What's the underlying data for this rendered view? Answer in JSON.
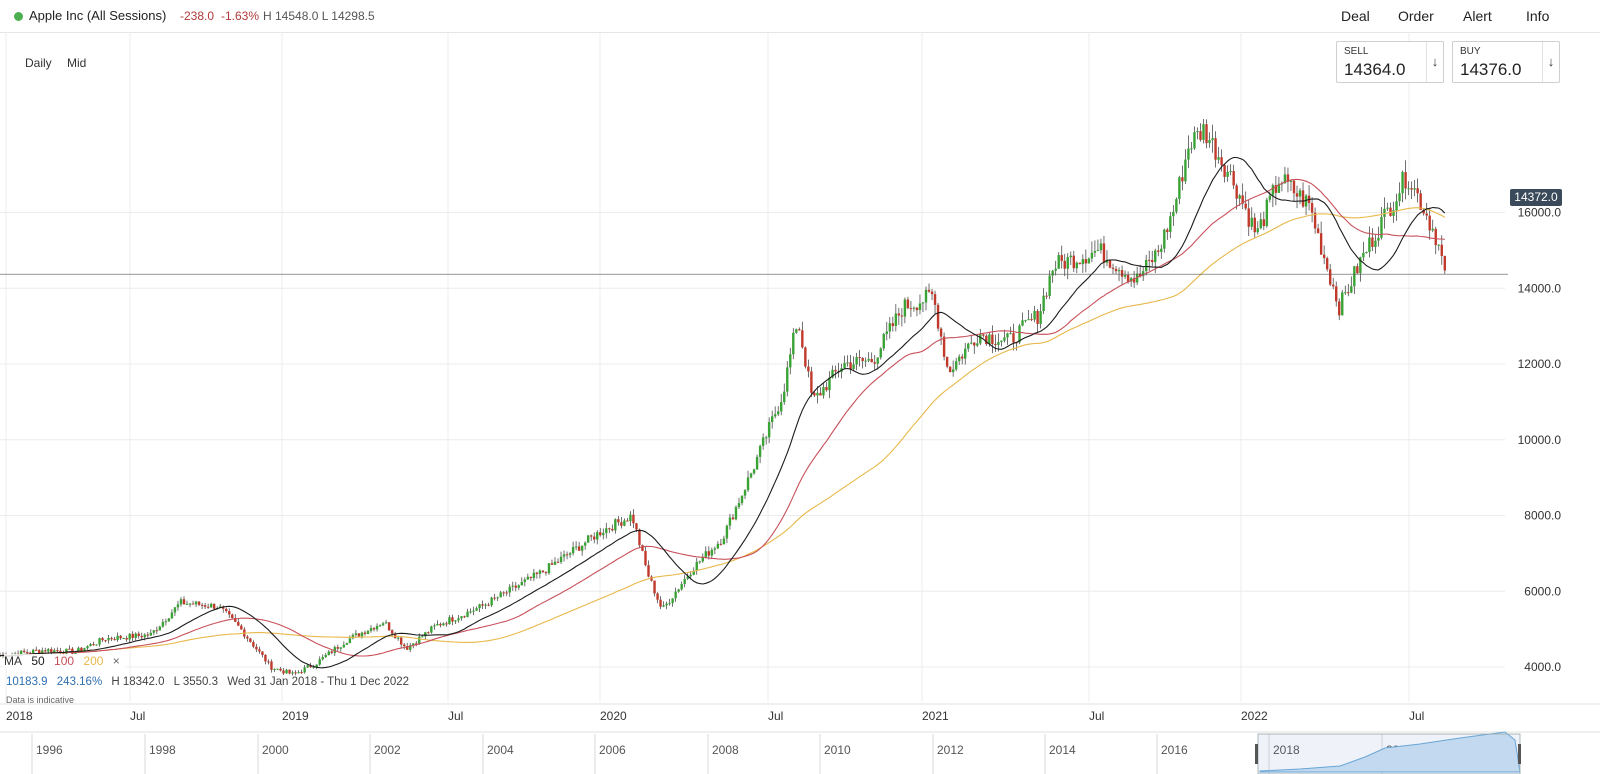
{
  "header": {
    "instrument": "Apple Inc (All Sessions)",
    "change": "-238.0",
    "change_pct": "-1.63%",
    "high_low": "H 14548.0  L 14298.5",
    "menu": [
      "Deal",
      "Order",
      "Alert",
      "Info"
    ]
  },
  "controls": {
    "interval": "Daily",
    "price_type": "Mid"
  },
  "tickets": {
    "sell": {
      "label": "SELL",
      "price": "14364.0",
      "arrow": "↓"
    },
    "buy": {
      "label": "BUY",
      "price": "14376.0",
      "arrow": "↓"
    }
  },
  "ma_legend": {
    "label": "MA",
    "periods": [
      "50",
      "100",
      "200"
    ],
    "close": "×"
  },
  "stats": {
    "value": "10183.9",
    "pct": "243.16%",
    "high": "H 18342.0",
    "low": "L 3550.3",
    "range": "Wed 31 Jan 2018 - Thu 1 Dec 2022"
  },
  "indicative": "Data is indicative",
  "colors": {
    "up": "#3aa335",
    "down": "#c0392b",
    "ma50": "#1c1c1c",
    "ma100": "#c8505a",
    "ma200": "#e8b84a",
    "navigator": "#6aa9d8"
  },
  "chart_data": {
    "type": "candlestick",
    "y_axis": {
      "ticks": [
        "4000.0",
        "6000.0",
        "8000.0",
        "10000.0",
        "12000.0",
        "14000.0",
        "16000.0"
      ],
      "range": [
        3550,
        18342
      ]
    },
    "last_price": "14372.0",
    "x_axis_labels": [
      "2018",
      "Jul",
      "2019",
      "Jul",
      "2020",
      "Jul",
      "2021",
      "Jul",
      "2022",
      "Jul"
    ],
    "navigator_labels": [
      "1996",
      "1998",
      "2000",
      "2002",
      "2004",
      "2006",
      "2008",
      "2010",
      "2012",
      "2014",
      "2016",
      "2018",
      "2020"
    ],
    "price_path": [
      [
        0,
        4300
      ],
      [
        0.03,
        4450
      ],
      [
        0.05,
        4400
      ],
      [
        0.07,
        4750
      ],
      [
        0.1,
        4850
      ],
      [
        0.12,
        5700
      ],
      [
        0.145,
        5600
      ],
      [
        0.16,
        5000
      ],
      [
        0.18,
        4000
      ],
      [
        0.195,
        3800
      ],
      [
        0.21,
        4100
      ],
      [
        0.23,
        4700
      ],
      [
        0.255,
        5200
      ],
      [
        0.27,
        4500
      ],
      [
        0.29,
        5100
      ],
      [
        0.32,
        5600
      ],
      [
        0.36,
        6500
      ],
      [
        0.4,
        7600
      ],
      [
        0.42,
        8000
      ],
      [
        0.43,
        6500
      ],
      [
        0.44,
        5500
      ],
      [
        0.46,
        6600
      ],
      [
        0.48,
        7400
      ],
      [
        0.5,
        9200
      ],
      [
        0.52,
        11200
      ],
      [
        0.53,
        13200
      ],
      [
        0.54,
        11000
      ],
      [
        0.56,
        12000
      ],
      [
        0.58,
        12100
      ],
      [
        0.6,
        13500
      ],
      [
        0.62,
        13800
      ],
      [
        0.63,
        11800
      ],
      [
        0.65,
        12800
      ],
      [
        0.67,
        12600
      ],
      [
        0.69,
        13300
      ],
      [
        0.7,
        14600
      ],
      [
        0.73,
        15000
      ],
      [
        0.755,
        14200
      ],
      [
        0.77,
        15000
      ],
      [
        0.78,
        16100
      ],
      [
        0.79,
        17800
      ],
      [
        0.8,
        18200
      ],
      [
        0.82,
        16800
      ],
      [
        0.835,
        15400
      ],
      [
        0.85,
        16900
      ],
      [
        0.87,
        16200
      ],
      [
        0.88,
        14800
      ],
      [
        0.89,
        13500
      ],
      [
        0.905,
        14800
      ],
      [
        0.92,
        15900
      ],
      [
        0.935,
        17000
      ],
      [
        0.945,
        16200
      ],
      [
        0.955,
        15300
      ],
      [
        0.96,
        14372
      ]
    ]
  }
}
